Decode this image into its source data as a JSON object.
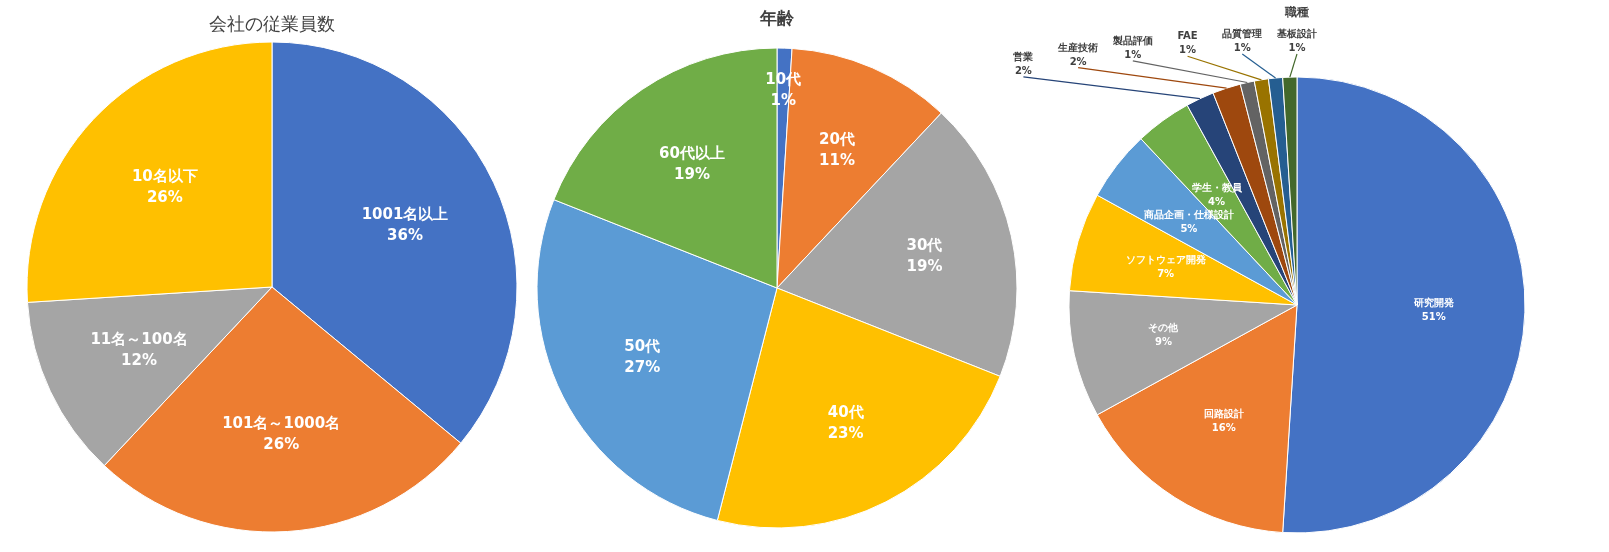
{
  "chart_data": [
    {
      "type": "pie",
      "title": "会社の従業員数",
      "categories": [
        "1001名以上",
        "101名～1000名",
        "11名～100名",
        "10名以下"
      ],
      "values": [
        36,
        26,
        12,
        26
      ],
      "value_labels": [
        "36%",
        "26%",
        "12%",
        "26%"
      ],
      "colors": [
        "#4472c4",
        "#ed7d31",
        "#a5a5a5",
        "#ffc000"
      ]
    },
    {
      "type": "pie",
      "title": "年齢",
      "categories": [
        "10代",
        "20代",
        "30代",
        "40代",
        "50代",
        "60代以上"
      ],
      "values": [
        1,
        11,
        19,
        23,
        27,
        19
      ],
      "value_labels": [
        "1%",
        "11%",
        "19%",
        "23%",
        "27%",
        "19%"
      ],
      "colors": [
        "#4472c4",
        "#ed7d31",
        "#a5a5a5",
        "#ffc000",
        "#5b9bd5",
        "#70ad47"
      ]
    },
    {
      "type": "pie",
      "title": "職種",
      "categories": [
        "研究開発",
        "回路設計",
        "その他",
        "ソフトウェア開発",
        "商品企画・仕様設計",
        "学生・教員",
        "営業",
        "生産技術",
        "製品評価",
        "FAE",
        "品質管理",
        "基板設計"
      ],
      "values": [
        51,
        16,
        9,
        7,
        5,
        4,
        2,
        2,
        1,
        1,
        1,
        1
      ],
      "value_labels": [
        "51%",
        "16%",
        "9%",
        "7%",
        "5%",
        "4%",
        "2%",
        "2%",
        "1%",
        "1%",
        "1%",
        "1%"
      ],
      "colors": [
        "#4472c4",
        "#ed7d31",
        "#a5a5a5",
        "#ffc000",
        "#5b9bd5",
        "#70ad47",
        "#264478",
        "#9e480e",
        "#636363",
        "#997300",
        "#255e91",
        "#43682b"
      ]
    }
  ]
}
